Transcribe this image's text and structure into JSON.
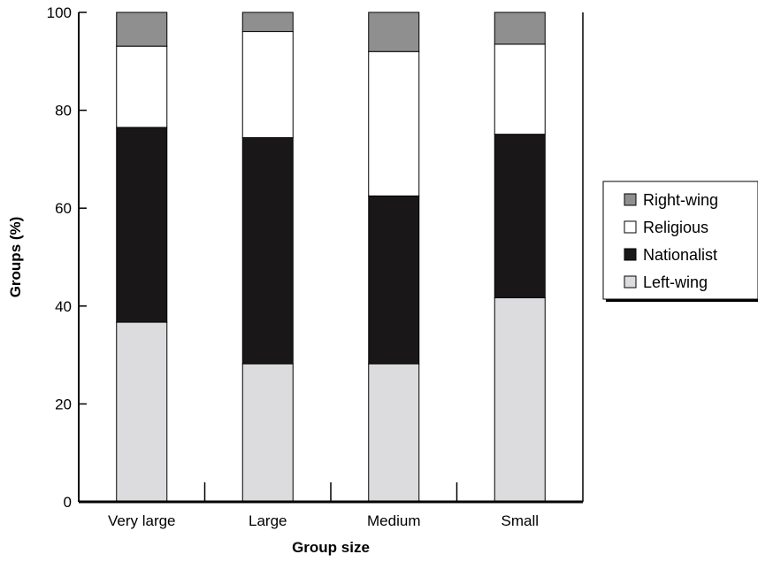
{
  "chart_data": {
    "type": "bar",
    "stacked": true,
    "categories": [
      "Very large",
      "Large",
      "Medium",
      "Small"
    ],
    "series": [
      {
        "name": "Left-wing",
        "color": "#dcdcde",
        "values": [
          36.7,
          28.2,
          28.2,
          41.7
        ]
      },
      {
        "name": "Nationalist",
        "color": "#1a1718",
        "values": [
          39.8,
          46.2,
          34.3,
          33.4
        ]
      },
      {
        "name": "Religious",
        "color": "#ffffff",
        "values": [
          16.6,
          21.7,
          29.5,
          18.4
        ]
      },
      {
        "name": "Right-wing",
        "color": "#8f8f90",
        "values": [
          6.9,
          3.9,
          8.0,
          6.5
        ]
      }
    ],
    "xlabel": "Group size",
    "ylabel": "Groups (%)",
    "ylim": [
      0,
      100
    ],
    "yticks": [
      "0",
      "20",
      "40",
      "60",
      "80",
      "100"
    ],
    "grid": false,
    "legend": {
      "position": "right",
      "entries": [
        "Right-wing",
        "Religious",
        "Nationalist",
        "Left-wing"
      ]
    }
  }
}
